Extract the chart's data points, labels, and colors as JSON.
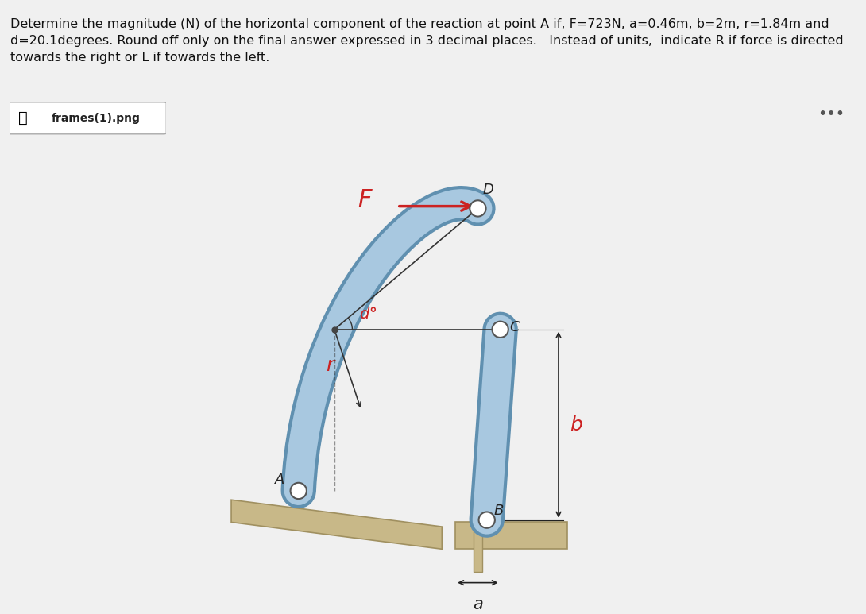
{
  "title_text": "Determine the magnitude (N) of the horizontal component of the reaction at point A if, F=723N, a=0.46m, b=2m, r=1.84m and\nd=20.1degrees. Round off only on the final answer expressed in 3 decimal places.   Instead of units,  indicate R if force is directed\ntowards the right or L if towards the left.",
  "file_label": "frames(1).png",
  "bg_color": "#f0f0f0",
  "diagram_bg": "#ffffff",
  "frame_color": "#a8c8e0",
  "frame_edge_color": "#6090b0",
  "ground_color": "#c8b888",
  "ground_edge_color": "#a09060",
  "pin_color": "#808080",
  "label_F_color": "#cc2222",
  "label_r_color": "#cc2222",
  "label_b_color": "#cc2222",
  "label_d_color": "#cc2222",
  "label_a_color": "#222222",
  "arrow_F_color": "#cc2222",
  "dim_line_color": "#222222",
  "text_color": "#111111"
}
